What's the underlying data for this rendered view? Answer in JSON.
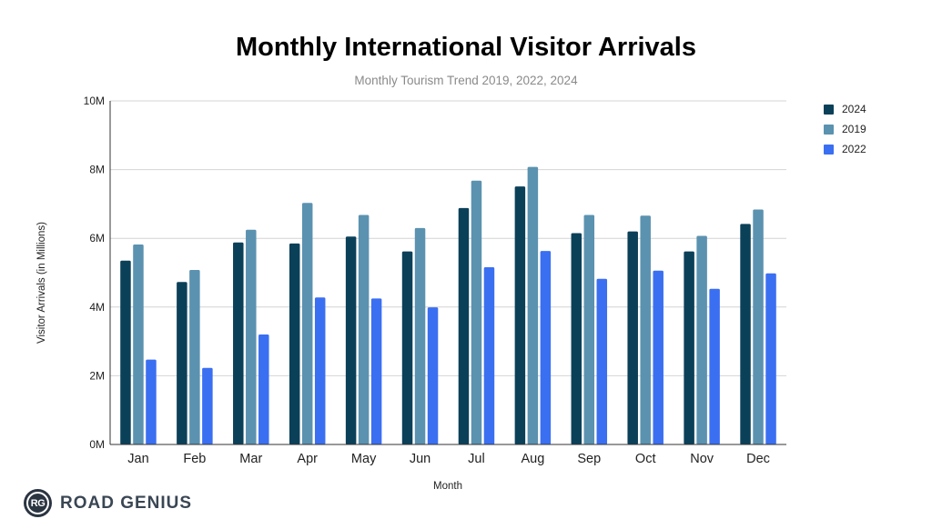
{
  "chart_data": {
    "type": "bar",
    "title": "Monthly International Visitor Arrivals",
    "subtitle": "Monthly Tourism Trend 2019, 2022, 2024",
    "xlabel": "Month",
    "ylabel": "Visitor Arrivals (in Millions)",
    "ylim": [
      0,
      10
    ],
    "yticks": [
      0,
      2,
      4,
      6,
      8,
      10
    ],
    "ytick_labels": [
      "0M",
      "2M",
      "4M",
      "6M",
      "8M",
      "10M"
    ],
    "grid": true,
    "legend_position": "top-right",
    "categories": [
      "Jan",
      "Feb",
      "Mar",
      "Apr",
      "May",
      "Jun",
      "Jul",
      "Aug",
      "Sep",
      "Oct",
      "Nov",
      "Dec"
    ],
    "series": [
      {
        "name": "2024",
        "color": "#0b4059",
        "values": [
          5.35,
          4.73,
          5.88,
          5.85,
          6.05,
          5.62,
          6.88,
          7.51,
          6.15,
          6.2,
          5.62,
          6.42
        ]
      },
      {
        "name": "2019",
        "color": "#5b92b0",
        "values": [
          5.82,
          5.08,
          6.25,
          7.03,
          6.68,
          6.3,
          7.68,
          8.08,
          6.68,
          6.66,
          6.07,
          6.84
        ]
      },
      {
        "name": "2022",
        "color": "#3b6ff2",
        "values": [
          2.47,
          2.23,
          3.2,
          4.28,
          4.25,
          3.99,
          5.16,
          5.63,
          4.82,
          5.06,
          4.53,
          4.98
        ]
      }
    ]
  },
  "logo": {
    "badge": "RG",
    "text": "ROAD GENIUS"
  }
}
